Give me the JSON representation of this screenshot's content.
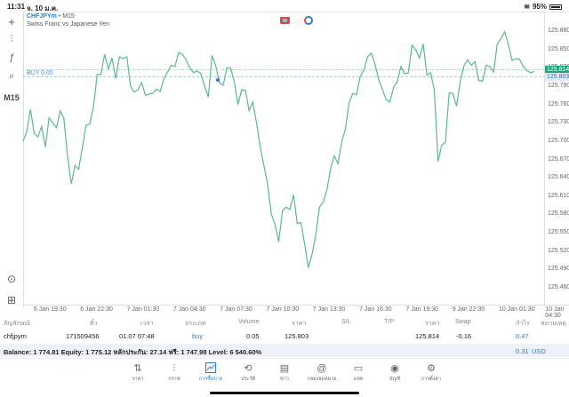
{
  "status_bar": {
    "time": "11:31",
    "date": "จ. 10 ม.ค.",
    "battery": "95%"
  },
  "left_toolbar": {
    "items": [
      {
        "name": "crosshair-icon",
        "glyph": "+"
      },
      {
        "name": "chart-type-icon",
        "glyph": "⫶"
      },
      {
        "name": "function-icon",
        "glyph": "ƒ"
      },
      {
        "name": "objects-icon",
        "glyph": "⌕"
      },
      {
        "name": "timeframe",
        "glyph": "M15"
      }
    ],
    "bottom_items": [
      {
        "name": "trade-zoom-icon",
        "glyph": "⊙"
      },
      {
        "name": "add-order-icon",
        "glyph": "⊞"
      }
    ]
  },
  "chart": {
    "symbol": "CHFJPYm",
    "separator": "•",
    "timeframe": "M15",
    "description": "Swiss Franc vs Japanese Yen",
    "buy_label": "BUY 0.05",
    "current_price": "125.814",
    "entry_price": "125.803",
    "line_color": "#5db88a",
    "price_tag_color": "#1fa37a",
    "entry_tag_color": "#dceaf8"
  },
  "chart_data": {
    "type": "line",
    "title": "CHFJPYm • M15",
    "subtitle": "Swiss Franc vs Japanese Yen",
    "x_tick_labels": [
      "6 Jan 19:30",
      "6 Jan 22:30",
      "7 Jan 01:30",
      "7 Jan 04:30",
      "7 Jan 07:30",
      "7 Jan 10:30",
      "7 Jan 13:30",
      "7 Jan 16:30",
      "7 Jan 19:30",
      "9 Jan 22:30",
      "10 Jan 01:30",
      "10 Jan 04:30"
    ],
    "y_tick_labels": [
      "125.880",
      "125.850",
      "125.820",
      "125.790",
      "125.760",
      "125.730",
      "125.700",
      "125.670",
      "125.640",
      "125.610",
      "125.580",
      "125.550",
      "125.520",
      "125.490",
      "125.460"
    ],
    "ylim": [
      125.445,
      125.895
    ],
    "grid": true,
    "horizontal_lines": [
      {
        "label": "current",
        "value": 125.814
      },
      {
        "label": "BUY 0.05",
        "value": 125.803
      }
    ],
    "series": [
      {
        "name": "Close",
        "values": [
          125.7,
          125.716,
          125.752,
          125.712,
          125.707,
          125.724,
          125.69,
          125.738,
          125.73,
          125.722,
          125.749,
          125.738,
          125.674,
          125.63,
          125.66,
          125.654,
          125.69,
          125.726,
          125.728,
          125.757,
          125.809,
          125.809,
          125.842,
          125.818,
          125.836,
          125.802,
          125.838,
          125.835,
          125.838,
          125.79,
          125.78,
          125.784,
          125.796,
          125.775,
          125.777,
          125.778,
          125.785,
          125.781,
          125.802,
          125.813,
          125.824,
          125.822,
          125.845,
          125.842,
          125.833,
          125.82,
          125.812,
          125.815,
          125.81,
          125.79,
          125.772,
          125.84,
          125.823,
          125.796,
          125.791,
          125.82,
          125.82,
          125.797,
          125.76,
          125.784,
          125.783,
          125.75,
          125.764,
          125.73,
          125.69,
          125.66,
          125.63,
          125.58,
          125.564,
          125.535,
          125.586,
          125.592,
          125.588,
          125.612,
          125.565,
          125.567,
          125.531,
          125.493,
          125.515,
          125.547,
          125.592,
          125.6,
          125.62,
          125.655,
          125.676,
          125.663,
          125.698,
          125.72,
          125.763,
          125.778,
          125.776,
          125.806,
          125.816,
          125.838,
          125.844,
          125.826,
          125.8,
          125.784,
          125.768,
          125.764,
          125.788,
          125.797,
          125.822,
          125.81,
          125.812,
          125.857,
          125.849,
          125.836,
          125.859,
          125.808,
          125.812,
          125.784,
          125.667,
          125.693,
          125.698,
          125.779,
          125.778,
          125.757,
          125.798,
          125.823,
          125.833,
          125.824,
          125.83,
          125.799,
          125.798,
          125.824,
          125.822,
          125.813,
          125.859,
          125.868,
          125.879,
          125.858,
          125.832,
          125.835,
          125.834,
          125.822,
          125.815,
          125.812,
          125.814
        ]
      }
    ]
  },
  "positions_table": {
    "headers": [
      "สัญลักษณ์",
      "ตั๋ว",
      "เวลา",
      "ประเภท",
      "Volume",
      "ราคา",
      "S/L",
      "T/P",
      "ราคา",
      "Swap",
      "กำไร",
      "หมายเหตุ"
    ],
    "rows": [
      {
        "symbol": "chfjpym",
        "ticket": "171509456",
        "time": "01.07 07:48",
        "type": "buy",
        "volume": "0.05",
        "open_price": "125.803",
        "sl": "",
        "tp": "",
        "price": "125.814",
        "swap": "-0.16",
        "profit": "0.47",
        "comment": ""
      }
    ]
  },
  "balance_bar": {
    "text": "Balance: 1 774.81 Equity: 1 775.12 หลักประกัน: 27.14 ฟรี: 1 747.98 Level: 6 540.60%",
    "total_profit": "0.31",
    "currency": "USD"
  },
  "bottom_nav": {
    "items": [
      {
        "id": "quotes",
        "label": "ราคา",
        "glyph": "⇅"
      },
      {
        "id": "chart",
        "label": "กราฟ",
        "glyph": "⫶"
      },
      {
        "id": "trade",
        "label": "การซื้อขาย",
        "glyph": "📈",
        "active": true
      },
      {
        "id": "history",
        "label": "ประวัติ",
        "glyph": "⟲"
      },
      {
        "id": "news",
        "label": "ข่าว",
        "glyph": "▤"
      },
      {
        "id": "mailbox",
        "label": "กล่องจดหมาย",
        "glyph": "@"
      },
      {
        "id": "chat",
        "label": "แชท",
        "glyph": "▭"
      },
      {
        "id": "account",
        "label": "บัญชี",
        "glyph": "◉"
      },
      {
        "id": "settings",
        "label": "การตั้งค่า",
        "glyph": "⚙"
      }
    ]
  }
}
